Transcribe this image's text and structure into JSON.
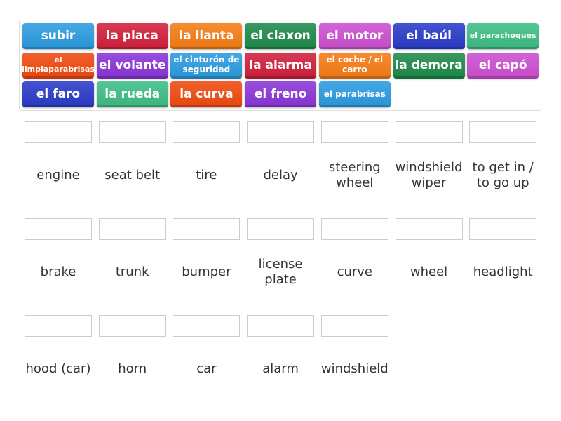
{
  "tiles": [
    {
      "text": "subir",
      "color": "#2b9be0"
    },
    {
      "text": "la placa",
      "color": "#d21f3c"
    },
    {
      "text": "la llanta",
      "color": "#f57c14"
    },
    {
      "text": "el claxon",
      "color": "#1e8a4a"
    },
    {
      "text": "el motor",
      "color": "#cc4fd1"
    },
    {
      "text": "el baúl",
      "color": "#2a3bc9"
    },
    {
      "text": "el parachoques",
      "color": "#3dbd85"
    },
    {
      "text": "el limpiaparabrisas",
      "color": "#f04a0e"
    },
    {
      "text": "el volante",
      "color": "#8a35d8"
    },
    {
      "text": "el cinturón de seguridad",
      "color": "#2b9be0"
    },
    {
      "text": "la alarma",
      "color": "#d21f3c"
    },
    {
      "text": "el coche / el carro",
      "color": "#f57c14"
    },
    {
      "text": "la demora",
      "color": "#1e8a4a"
    },
    {
      "text": "el capó",
      "color": "#cc4fd1"
    },
    {
      "text": "el faro",
      "color": "#2a3bc9"
    },
    {
      "text": "la rueda",
      "color": "#3dbd85"
    },
    {
      "text": "la curva",
      "color": "#f04a0e"
    },
    {
      "text": "el freno",
      "color": "#8a35d8"
    },
    {
      "text": "el parabrisas",
      "color": "#2b9be0"
    }
  ],
  "targets": [
    "engine",
    "seat belt",
    "tire",
    "delay",
    "steering wheel",
    "windshield wiper",
    "to get in / to go up",
    "brake",
    "trunk",
    "bumper",
    "license plate",
    "curve",
    "wheel",
    "headlight",
    "hood (car)",
    "horn",
    "car",
    "alarm",
    "windshield"
  ]
}
